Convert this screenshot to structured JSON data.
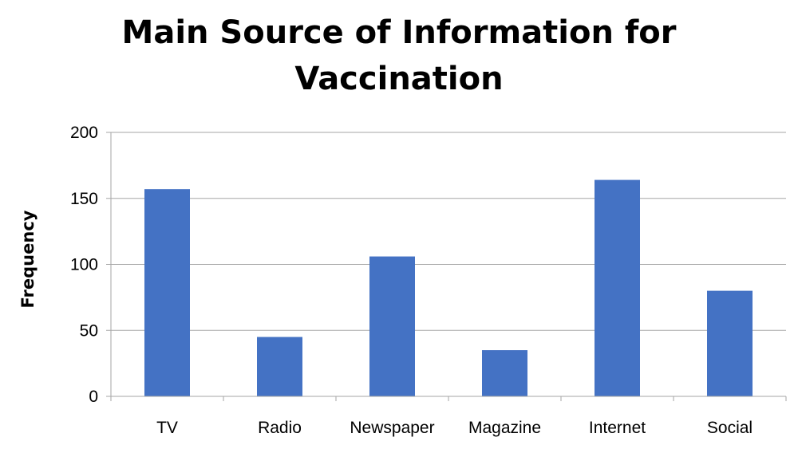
{
  "chart_data": {
    "type": "bar",
    "title_line1": "Main Source of Information for",
    "title_line2": "Vaccination",
    "xlabel": "",
    "ylabel": "Frequency",
    "categories": [
      "TV",
      "Radio",
      "Newspaper",
      "Magazine",
      "Internet",
      "Social"
    ],
    "values": [
      157,
      45,
      106,
      35,
      164,
      80
    ],
    "ylim": [
      0,
      200
    ],
    "yticks": [
      "0",
      "50",
      "100",
      "150",
      "200"
    ],
    "grid": true,
    "bar_color": "#4472C4"
  }
}
